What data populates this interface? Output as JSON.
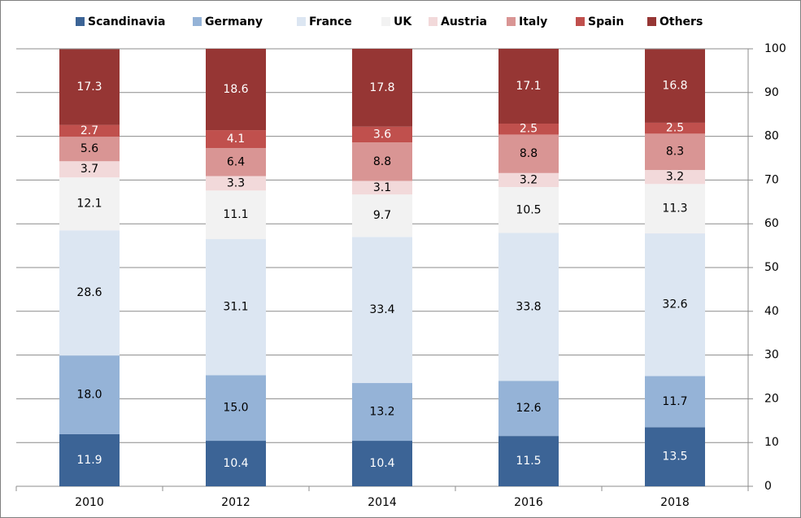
{
  "chart_data": {
    "type": "stacked_bar",
    "categories": [
      "2010",
      "2012",
      "2014",
      "2016",
      "2018"
    ],
    "series": [
      {
        "name": "Scandinavia",
        "color": "#3c6496",
        "values": [
          11.9,
          10.4,
          10.4,
          11.5,
          13.5
        ],
        "value_labels": [
          "11.9",
          "10.4",
          "10.4",
          "11.5",
          "13.5"
        ]
      },
      {
        "name": "Germany",
        "color": "#95b3d7",
        "values": [
          18.0,
          15.0,
          13.2,
          12.6,
          11.7
        ],
        "value_labels": [
          "18.0",
          "15.0",
          "13.2",
          "12.6",
          "11.7"
        ]
      },
      {
        "name": "France",
        "color": "#dce6f2",
        "values": [
          28.6,
          31.1,
          33.4,
          33.8,
          32.6
        ],
        "value_labels": [
          "28.6",
          "31.1",
          "33.4",
          "33.8",
          "32.6"
        ]
      },
      {
        "name": "UK",
        "color": "#f2f2f2",
        "values": [
          12.1,
          11.1,
          9.7,
          10.5,
          11.3
        ],
        "value_labels": [
          "12.1",
          "11.1",
          "9.7",
          "10.5",
          "11.3"
        ]
      },
      {
        "name": "Austria",
        "color": "#f2d9da",
        "values": [
          3.7,
          3.3,
          3.1,
          3.2,
          3.2
        ],
        "value_labels": [
          "3.7",
          "3.3",
          "3.1",
          "3.2",
          "3.2"
        ]
      },
      {
        "name": "Italy",
        "color": "#d99594",
        "values": [
          5.6,
          6.4,
          8.8,
          8.8,
          8.3
        ],
        "value_labels": [
          "5.6",
          "6.4",
          "8.8",
          "8.8",
          "8.3"
        ]
      },
      {
        "name": "Spain",
        "color": "#c0504d",
        "values": [
          2.7,
          4.1,
          3.6,
          2.5,
          2.5
        ],
        "value_labels": [
          "2.7",
          "4.1",
          "3.6",
          "2.5",
          "2.5"
        ]
      },
      {
        "name": "Others",
        "color": "#963634",
        "values": [
          17.3,
          18.6,
          17.8,
          17.1,
          16.8
        ],
        "value_labels": [
          "17.3",
          "18.6",
          "17.8",
          "17.1",
          "16.8"
        ]
      }
    ],
    "ylim": [
      0,
      100
    ],
    "yticks": [
      0,
      10,
      20,
      30,
      40,
      50,
      60,
      70,
      80,
      90,
      100
    ],
    "grid": true,
    "legend": "top"
  }
}
